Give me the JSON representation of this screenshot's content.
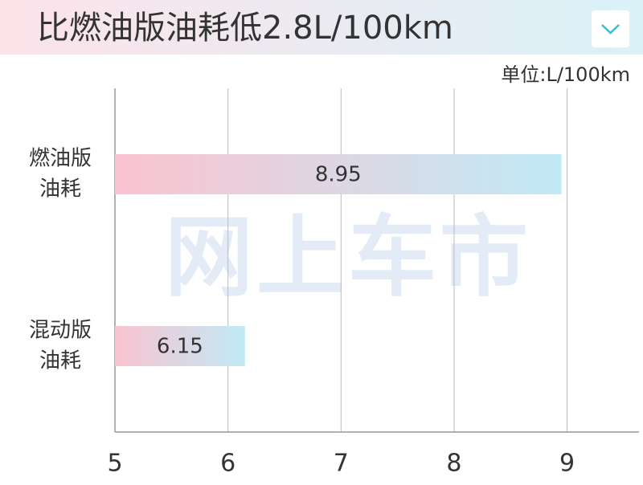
{
  "chart_data": {
    "type": "bar",
    "orientation": "horizontal",
    "title": "比燃油版油耗低2.8L/100km",
    "unit_label": "单位:L/100km",
    "watermark": "网上车市",
    "categories": [
      [
        "燃油版",
        "油耗"
      ],
      [
        "混动版",
        "油耗"
      ]
    ],
    "values": [
      8.95,
      6.15
    ],
    "colors": [
      "#fac3d0",
      "#c0eaf6"
    ],
    "xlim": [
      5,
      9.6
    ],
    "xticks": [
      5,
      6,
      7,
      8,
      9
    ],
    "grid": true
  }
}
